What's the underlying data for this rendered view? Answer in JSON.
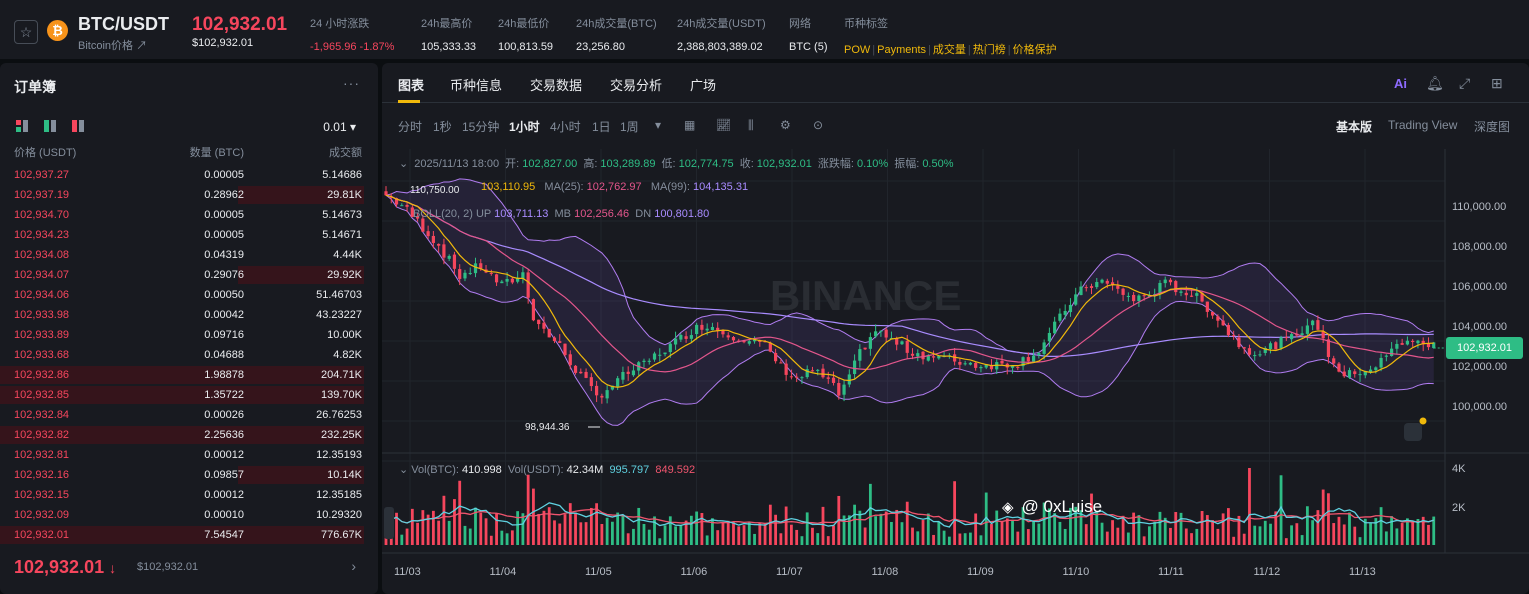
{
  "header": {
    "pair": "BTC/USDT",
    "subtitle": "Bitcoin价格 ↗",
    "price": "102,932.01",
    "price_usd": "$102,932.01",
    "stats": [
      {
        "label": "24 小时涨跌",
        "value": "-1,965.96 -1.87%"
      },
      {
        "label": "24h最高价",
        "value": "105,333.33"
      },
      {
        "label": "24h最低价",
        "value": "100,813.59"
      },
      {
        "label": "24h成交量(BTC)",
        "value": "23,256.80"
      },
      {
        "label": "24h成交量(USDT)",
        "value": "2,388,803,389.02"
      },
      {
        "label": "网络",
        "value": "BTC (5)"
      }
    ],
    "tags_label": "币种标签",
    "tags": [
      "POW",
      "Payments",
      "成交量",
      "热门榜",
      "价格保护"
    ]
  },
  "orderbook": {
    "title": "订单簿",
    "more": "···",
    "precision": "0.01 ▾",
    "headers": [
      "价格 (USDT)",
      "数量 (BTC)",
      "成交额"
    ],
    "rows": [
      {
        "price": "102,937.27",
        "qty": "0.00005",
        "total": "5.14686",
        "depth": 0
      },
      {
        "price": "102,937.19",
        "qty": "0.28962",
        "total": "29.81K",
        "depth": 0.1
      },
      {
        "price": "102,934.70",
        "qty": "0.00005",
        "total": "5.14673",
        "depth": 0
      },
      {
        "price": "102,934.23",
        "qty": "0.00005",
        "total": "5.14671",
        "depth": 0
      },
      {
        "price": "102,934.08",
        "qty": "0.04319",
        "total": "4.44K",
        "depth": 0
      },
      {
        "price": "102,934.07",
        "qty": "0.29076",
        "total": "29.92K",
        "depth": 0.1
      },
      {
        "price": "102,934.06",
        "qty": "0.00050",
        "total": "51.46703",
        "depth": 0
      },
      {
        "price": "102,933.98",
        "qty": "0.00042",
        "total": "43.23227",
        "depth": 0
      },
      {
        "price": "102,933.89",
        "qty": "0.09716",
        "total": "10.00K",
        "depth": 0
      },
      {
        "price": "102,933.68",
        "qty": "0.04688",
        "total": "4.82K",
        "depth": 0
      },
      {
        "price": "102,932.86",
        "qty": "1.98878",
        "total": "204.71K",
        "depth": 1
      },
      {
        "price": "102,932.85",
        "qty": "1.35722",
        "total": "139.70K",
        "depth": 1
      },
      {
        "price": "102,932.84",
        "qty": "0.00026",
        "total": "26.76253",
        "depth": 0
      },
      {
        "price": "102,932.82",
        "qty": "2.25636",
        "total": "232.25K",
        "depth": 1
      },
      {
        "price": "102,932.81",
        "qty": "0.00012",
        "total": "12.35193",
        "depth": 0
      },
      {
        "price": "102,932.16",
        "qty": "0.09857",
        "total": "10.14K",
        "depth": 0.1
      },
      {
        "price": "102,932.15",
        "qty": "0.00012",
        "total": "12.35185",
        "depth": 0
      },
      {
        "price": "102,932.09",
        "qty": "0.00010",
        "total": "10.29320",
        "depth": 0
      },
      {
        "price": "102,932.01",
        "qty": "7.54547",
        "total": "776.67K",
        "depth": 1
      }
    ],
    "last_price": "102,932.01",
    "last_arrow": "↓",
    "last_price_usd": "$102,932.01"
  },
  "chart": {
    "tabs": [
      "图表",
      "币种信息",
      "交易数据",
      "交易分析",
      "广场"
    ],
    "ai_label": "Ai",
    "intervals": [
      "分时",
      "1秒",
      "15分钟",
      "1小时",
      "4小时",
      "1日",
      "1周"
    ],
    "active_interval": "1小时",
    "views": [
      "基本版",
      "Trading View",
      "深度图"
    ],
    "ohlc": {
      "date": "2025/11/13 18:00",
      "open_label": "开:",
      "open": "102,827.00",
      "high_label": "高:",
      "high": "103,289.89",
      "low_label": "低:",
      "low": "102,774.75",
      "close_label": "收:",
      "close": "102,932.01",
      "change_label": "涨跌幅:",
      "change": "0.10%",
      "amp_label": "振幅:",
      "amp": "0.50%"
    },
    "ma": {
      "ma7": "103,110.95",
      "ma25_label": "MA(25):",
      "ma25": "102,762.97",
      "ma99_label": "MA(99):",
      "ma99": "104,135.31"
    },
    "boll": {
      "label": "BOLL(20, 2)",
      "up_label": "UP",
      "up": "103,711.13",
      "mb_label": "MB",
      "mb": "102,256.46",
      "dn_label": "DN",
      "dn": "100,801.80"
    },
    "vol": {
      "btc_label": "Vol(BTC):",
      "btc": "410.998",
      "usdt_label": "Vol(USDT):",
      "usdt": "42.34M",
      "ma1": "995.797",
      "ma2": "849.592"
    },
    "high_marker": "110,750.00",
    "low_marker": "98,944.36",
    "current_price": "102,932.01",
    "watermark": "BINANCE",
    "credit": "@ 0xLuise",
    "colors": {
      "up": "#2ebd85",
      "down": "#f6465d",
      "ma7": "#f0b90b",
      "ma25": "#e3568c",
      "ma99": "#a98cff",
      "boll": "#b07cf0",
      "vol_ma1": "#5fd1e0",
      "vol_ma2": "#f0556e"
    }
  },
  "chart_data": {
    "type": "candlestick",
    "x_tick_labels": [
      "11/03",
      "11/04",
      "11/05",
      "11/06",
      "11/07",
      "11/08",
      "11/09",
      "11/10",
      "11/11",
      "11/12",
      "11/13"
    ],
    "y_tick_labels": [
      "110,000.00",
      "108,000.00",
      "106,000.00",
      "104,000.00",
      "102,000.00",
      "100,000.00"
    ],
    "ylim": [
      98700,
      111400
    ],
    "volume_tick_labels": [
      "4K",
      "2K"
    ],
    "close_path": [
      [
        0,
        110300
      ],
      [
        3,
        109800
      ],
      [
        6,
        109000
      ],
      [
        10,
        107800
      ],
      [
        14,
        106300
      ],
      [
        18,
        106800
      ],
      [
        22,
        105800
      ],
      [
        26,
        106400
      ],
      [
        28,
        104300
      ],
      [
        30,
        103600
      ],
      [
        33,
        102800
      ],
      [
        35,
        102000
      ],
      [
        38,
        101000
      ],
      [
        40,
        100300
      ],
      [
        43,
        100900
      ],
      [
        46,
        101500
      ],
      [
        49,
        101900
      ],
      [
        52,
        102500
      ],
      [
        55,
        103000
      ],
      [
        58,
        103600
      ],
      [
        61,
        103900
      ],
      [
        64,
        103500
      ],
      [
        68,
        103200
      ],
      [
        72,
        102800
      ],
      [
        75,
        101800
      ],
      [
        78,
        101200
      ],
      [
        81,
        101600
      ],
      [
        84,
        101100
      ],
      [
        86,
        100400
      ],
      [
        88,
        101200
      ],
      [
        90,
        102500
      ],
      [
        93,
        103600
      ],
      [
        96,
        103100
      ],
      [
        100,
        102500
      ],
      [
        104,
        102300
      ],
      [
        108,
        102100
      ],
      [
        112,
        101900
      ],
      [
        116,
        101900
      ],
      [
        120,
        102000
      ],
      [
        124,
        102600
      ],
      [
        127,
        103800
      ],
      [
        130,
        105000
      ],
      [
        133,
        105800
      ],
      [
        136,
        106000
      ],
      [
        139,
        105600
      ],
      [
        142,
        105100
      ],
      [
        145,
        105400
      ],
      [
        148,
        105900
      ],
      [
        151,
        105600
      ],
      [
        154,
        105200
      ],
      [
        157,
        104500
      ],
      [
        160,
        103500
      ],
      [
        163,
        102700
      ],
      [
        166,
        102500
      ],
      [
        169,
        102900
      ],
      [
        172,
        103200
      ],
      [
        175,
        103900
      ],
      [
        177,
        103800
      ],
      [
        179,
        102400
      ],
      [
        182,
        101300
      ],
      [
        185,
        101600
      ],
      [
        188,
        101800
      ],
      [
        191,
        102600
      ],
      [
        194,
        103200
      ],
      [
        196,
        102900
      ]
    ],
    "n_bars": 200
  }
}
